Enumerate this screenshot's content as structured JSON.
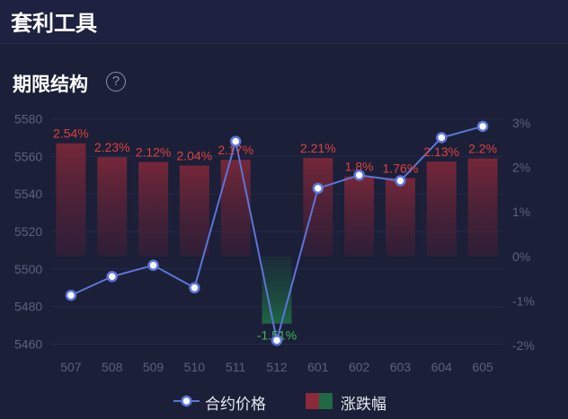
{
  "header": {
    "title": "套利工具"
  },
  "section": {
    "title": "期限结构",
    "help_icon": "question-circle-icon"
  },
  "colors": {
    "background": "#1b1f38",
    "line": "#5b75d8",
    "rise_bar": "#7c2a3a",
    "fall_bar": "#1e5a3e",
    "rise_label": "#e0413b",
    "fall_label": "#3fb950",
    "axis_text": "#5c617d"
  },
  "legend": {
    "price_label": "合约价格",
    "change_label": "涨跌幅"
  },
  "chart_data": {
    "type": "bar+line",
    "categories": [
      "507",
      "508",
      "509",
      "510",
      "511",
      "512",
      "601",
      "602",
      "603",
      "604",
      "605"
    ],
    "series": [
      {
        "name": "合约价格",
        "type": "line",
        "axis": "left",
        "values": [
          5486,
          5496,
          5502,
          5490,
          5568,
          5462,
          5543,
          5550,
          5547,
          5570,
          5576
        ]
      },
      {
        "name": "涨跌幅",
        "type": "bar",
        "axis": "right",
        "unit": "%",
        "values": [
          2.54,
          2.23,
          2.12,
          2.04,
          2.17,
          -1.51,
          2.21,
          1.8,
          1.76,
          2.13,
          2.2
        ],
        "labels": [
          "2.54%",
          "2.23%",
          "2.12%",
          "2.04%",
          "2.17%",
          "-1.51%",
          "2.21%",
          "1.8%",
          "1.76%",
          "2.13%",
          "2.2%"
        ]
      }
    ],
    "y_left": {
      "ticks": [
        5460,
        5480,
        5500,
        5520,
        5540,
        5560,
        5580
      ],
      "ylim": [
        5455,
        5585
      ]
    },
    "y_right": {
      "ticks": [
        -2,
        -1,
        0,
        1,
        2,
        3
      ],
      "tick_labels": [
        "-2%",
        "-1%",
        "0%",
        "1%",
        "2%",
        "3%"
      ],
      "ylim": [
        -2.18,
        3.3
      ]
    },
    "grid": true,
    "legend_position": "bottom-center"
  }
}
